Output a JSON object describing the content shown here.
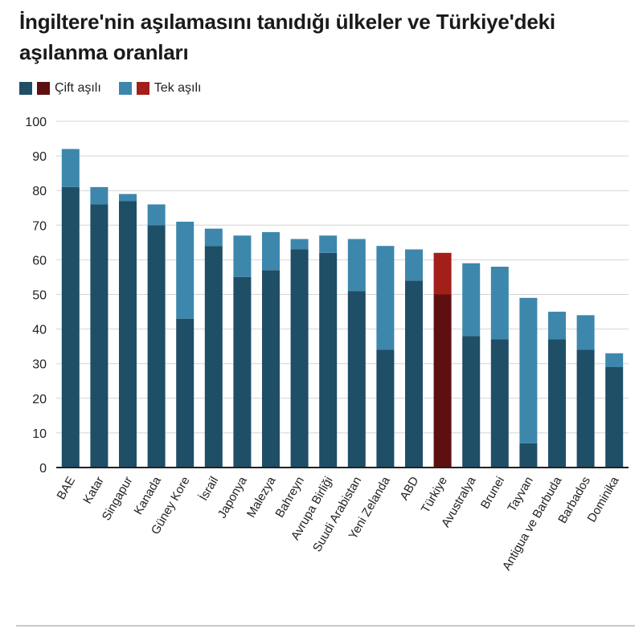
{
  "title": "İngiltere'nin aşılamasını tanıdığı ülkeler ve Türkiye'deki aşılanma oranları",
  "legend": {
    "double_label": "Çift aşılı",
    "single_label": "Tek aşılı"
  },
  "colors": {
    "double_default": "#1f4e67",
    "single_default": "#3d87ad",
    "double_highlight": "#5e0f0f",
    "single_highlight": "#a31f1a",
    "grid": "#d4d4d4",
    "axis": "#222222"
  },
  "chart_data": {
    "type": "bar",
    "stacked": true,
    "categories": [
      "BAE",
      "Katar",
      "Singapur",
      "Kanada",
      "Güney Kore",
      "İsrail",
      "Japonya",
      "Malezya",
      "Bahreyn",
      "Avrupa Birliği",
      "Suudi Arabistan",
      "Yeni Zelanda",
      "ABD",
      "Türkiye",
      "Avustralya",
      "Brunei",
      "Tayvan",
      "Antigua ve Barbuda",
      "Barbados",
      "Dominika"
    ],
    "highlight": "Türkiye",
    "series": [
      {
        "name": "Çift aşılı",
        "values": [
          81,
          76,
          77,
          70,
          43,
          64,
          55,
          57,
          63,
          62,
          51,
          34,
          54,
          50,
          38,
          37,
          7,
          37,
          34,
          29
        ]
      },
      {
        "name": "Tek aşılı",
        "values": [
          11,
          5,
          2,
          6,
          28,
          5,
          12,
          11,
          3,
          5,
          15,
          30,
          9,
          12,
          21,
          21,
          42,
          8,
          10,
          4
        ]
      }
    ],
    "ylim": [
      0,
      100
    ],
    "yticks": [
      0,
      10,
      20,
      30,
      40,
      50,
      60,
      70,
      80,
      90,
      100
    ],
    "grid": true,
    "legend_position": "top-left"
  }
}
